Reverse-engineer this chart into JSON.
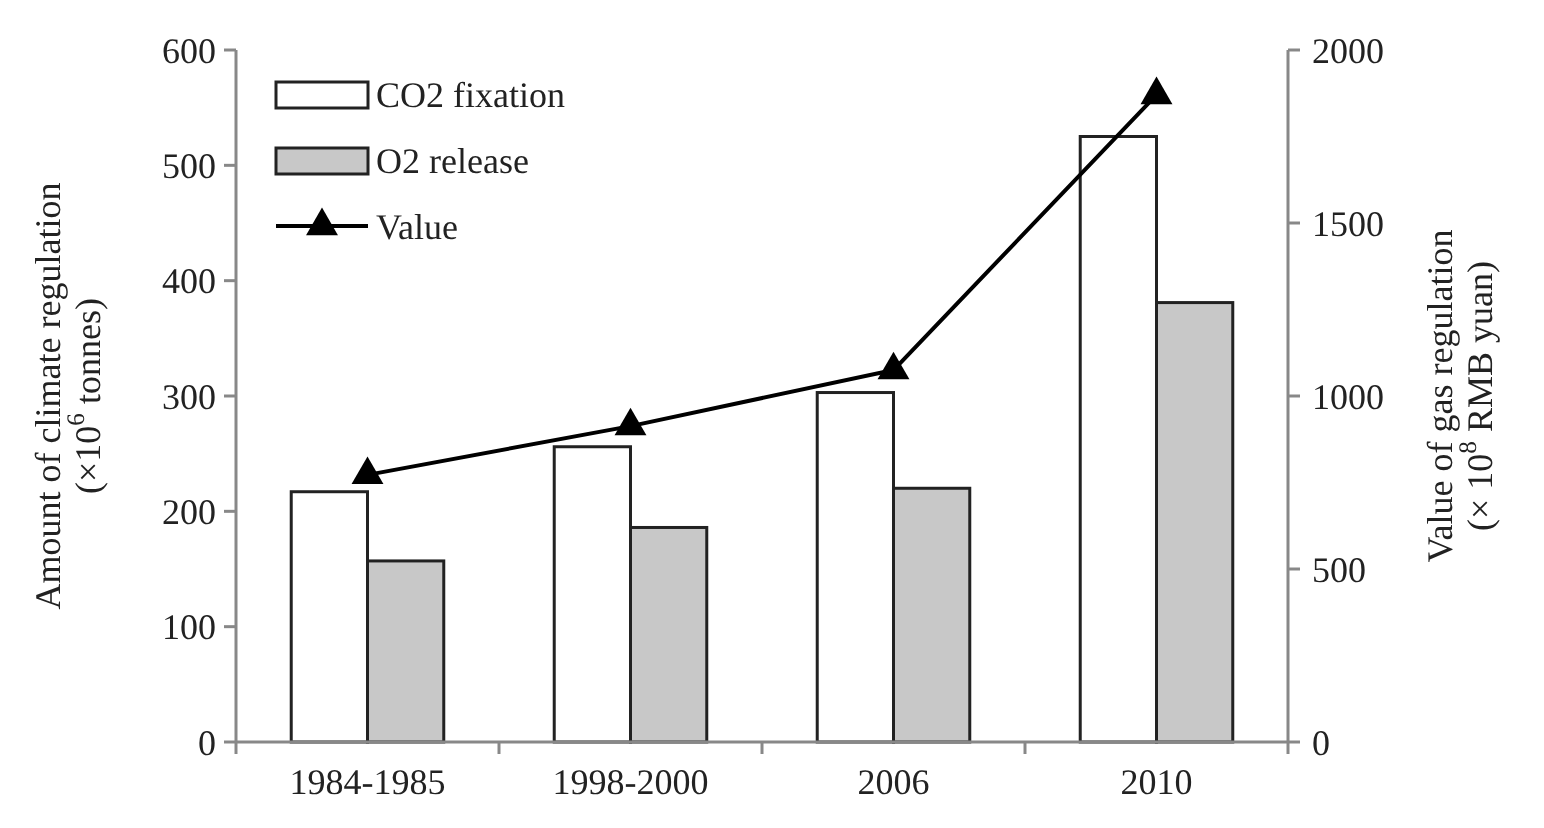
{
  "chart_data": {
    "type": "bar",
    "categories": [
      "1984-1985",
      "1998-2000",
      "2006",
      "2010"
    ],
    "ylabel": "Amount of climate regulation\n(×10$^{6}$ tonnes)",
    "y2label": "Value of gas regulation\n(× 10$^{8}$ RMB yuan)",
    "series": [
      {
        "name": "CO2 fixation",
        "color": "#ffffff",
        "values": [
          217,
          256,
          303,
          525
        ]
      },
      {
        "name": "O2 release",
        "color": "#c8c8c8",
        "values": [
          157,
          186,
          220,
          381
        ]
      },
      {
        "name": "Value",
        "type": "line",
        "axis": "y2",
        "color": "#000000",
        "values": [
          772,
          913,
          1075,
          1870
        ],
        "marker": "triangle"
      }
    ],
    "ylim": [
      0,
      600
    ],
    "yticks": [
      0,
      100,
      200,
      300,
      400,
      500,
      600
    ],
    "y2lim": [
      0,
      2000
    ],
    "y2ticks": [
      0,
      500,
      1000,
      1500,
      2000
    ],
    "legend": "top left",
    "grid": false
  }
}
